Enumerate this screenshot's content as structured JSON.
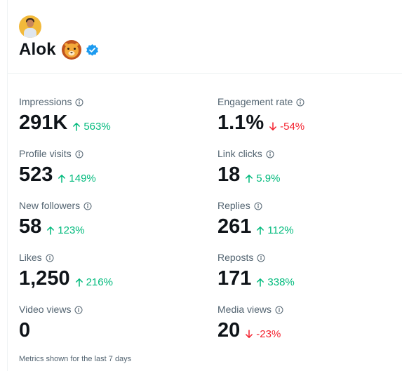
{
  "profile": {
    "name": "Alok",
    "avatar": "avatar-photo",
    "emoji": "lion-face-icon",
    "badge": "verified-badge-icon",
    "badge_color": "#1d9bf0"
  },
  "metrics": [
    {
      "label": "Impressions",
      "value": "291K",
      "delta": "563%",
      "direction": "up"
    },
    {
      "label": "Engagement rate",
      "value": "1.1%",
      "delta": "-54%",
      "direction": "down"
    },
    {
      "label": "Profile visits",
      "value": "523",
      "delta": "149%",
      "direction": "up"
    },
    {
      "label": "Link clicks",
      "value": "18",
      "delta": "5.9%",
      "direction": "up"
    },
    {
      "label": "New followers",
      "value": "58",
      "delta": "123%",
      "direction": "up"
    },
    {
      "label": "Replies",
      "value": "261",
      "delta": "112%",
      "direction": "up"
    },
    {
      "label": "Likes",
      "value": "1,250",
      "delta": "216%",
      "direction": "up"
    },
    {
      "label": "Reposts",
      "value": "171",
      "delta": "338%",
      "direction": "up"
    },
    {
      "label": "Video views",
      "value": "0",
      "delta": "",
      "direction": ""
    },
    {
      "label": "Media views",
      "value": "20",
      "delta": "-23%",
      "direction": "down"
    }
  ],
  "footnote": "Metrics shown for the last 7 days",
  "colors": {
    "up": "#00ba7c",
    "down": "#f4212e",
    "muted": "#536471"
  }
}
